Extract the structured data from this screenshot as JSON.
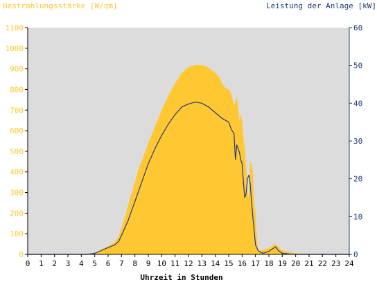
{
  "chart_data": {
    "type": "area",
    "title_left": "Bestrahlungsstärke [W/qm]",
    "title_right": "Leistung der Anlage [kW]",
    "xlabel": "Uhrzeit in Stunden",
    "xlim": [
      0,
      24
    ],
    "x_ticks": [
      "0",
      "1",
      "2",
      "3",
      "4",
      "5",
      "6",
      "7",
      "8",
      "9",
      "10",
      "11",
      "12",
      "13",
      "14",
      "15",
      "16",
      "17",
      "18",
      "19",
      "20",
      "21",
      "22",
      "23",
      "24"
    ],
    "y_left": {
      "lim": [
        0,
        1100
      ],
      "ticks": [
        "0",
        "100",
        "200",
        "300",
        "400",
        "500",
        "600",
        "700",
        "800",
        "900",
        "1000",
        "1100"
      ]
    },
    "y_right": {
      "lim": [
        0,
        60
      ],
      "ticks": [
        "0",
        "10",
        "20",
        "30",
        "40",
        "50",
        "60"
      ]
    },
    "grid": false,
    "colors": {
      "irradiance": "#ffc832",
      "power": "#1f3a7a",
      "plot_bg": "#dcdcdc"
    },
    "series": [
      {
        "axis": "left",
        "style": "area",
        "x": [
          0,
          4.5,
          5,
          5.3,
          5.5,
          6,
          6.5,
          6.8,
          7,
          7.3,
          7.5,
          8,
          8.3,
          8.5,
          9,
          9.5,
          10,
          10.5,
          11,
          11.5,
          12,
          12.3,
          12.5,
          12.8,
          13,
          13.3,
          13.5,
          14,
          14.3,
          14.5,
          14.7,
          15,
          15.2,
          15.4,
          15.5,
          15.6,
          15.7,
          15.8,
          15.9,
          16,
          16.1,
          16.2,
          16.3,
          16.4,
          16.5,
          16.6,
          16.7,
          16.8,
          16.9,
          17,
          17.1,
          17.2,
          17.3,
          17.4,
          17.5,
          17.7,
          18,
          18.2,
          18.4,
          18.6,
          18.8,
          19,
          19.5,
          20,
          20.5,
          24
        ],
        "values": [
          0,
          0,
          5,
          15,
          25,
          40,
          60,
          90,
          130,
          190,
          240,
          350,
          420,
          450,
          540,
          620,
          700,
          770,
          830,
          880,
          910,
          915,
          920,
          918,
          920,
          912,
          905,
          880,
          860,
          830,
          810,
          800,
          780,
          720,
          740,
          760,
          720,
          650,
          680,
          650,
          560,
          520,
          420,
          300,
          280,
          450,
          440,
          400,
          250,
          200,
          80,
          10,
          15,
          20,
          20,
          25,
          30,
          40,
          50,
          45,
          30,
          20,
          10,
          5,
          0,
          0
        ]
      },
      {
        "axis": "right",
        "style": "line",
        "x": [
          0,
          4.5,
          5,
          5.5,
          6,
          6.5,
          6.8,
          7,
          7.5,
          8,
          8.5,
          9,
          9.5,
          10,
          10.5,
          11,
          11.5,
          12,
          12.5,
          13,
          13.5,
          14,
          14.5,
          15,
          15.2,
          15.4,
          15.5,
          15.6,
          15.7,
          15.8,
          15.9,
          16,
          16.1,
          16.2,
          16.3,
          16.4,
          16.5,
          16.6,
          16.7,
          16.8,
          17,
          17.2,
          17.4,
          17.6,
          18,
          18.3,
          18.5,
          18.7,
          19,
          19.5,
          20,
          24
        ],
        "values": [
          0,
          0,
          0.3,
          1,
          1.8,
          2.5,
          3.5,
          5,
          9,
          14,
          19,
          24,
          28,
          31.5,
          34.5,
          37,
          39,
          39.8,
          40.3,
          40,
          39,
          37.5,
          36,
          35,
          33,
          32,
          25,
          29,
          28,
          27,
          25,
          24,
          19,
          15,
          16,
          20,
          21,
          19,
          14,
          10,
          2.5,
          1,
          0.5,
          0.3,
          0.8,
          1.5,
          2,
          1,
          0.3,
          0.1,
          0,
          0
        ]
      }
    ]
  }
}
